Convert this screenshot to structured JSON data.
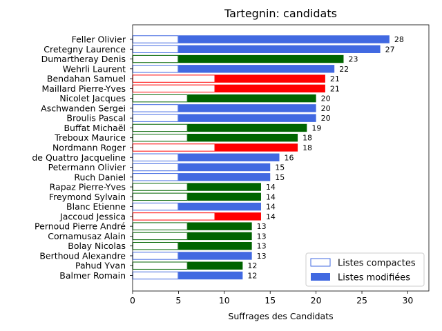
{
  "chart_data": {
    "type": "bar",
    "orientation": "horizontal",
    "stacked": true,
    "title": "Tartegnin: candidats",
    "xlabel": "Suffrages des Candidats",
    "ylabel": "",
    "xlim": [
      0,
      32.3
    ],
    "xticks": [
      0,
      5,
      10,
      15,
      20,
      25,
      30
    ],
    "grid": false,
    "legend_position": "bottom-right",
    "legend": [
      {
        "label": "Listes compactes",
        "style": "outline",
        "color": "#4169e1"
      },
      {
        "label": "Listes modifiées",
        "style": "filled",
        "color": "#4169e1"
      }
    ],
    "candidates": [
      {
        "name": "Feller Olivier",
        "compact": 5,
        "total": 28,
        "color": "#4169e1"
      },
      {
        "name": "Cretegny Laurence",
        "compact": 5,
        "total": 27,
        "color": "#4169e1"
      },
      {
        "name": "Dumartheray Denis",
        "compact": 5,
        "total": 23,
        "color": "#006400"
      },
      {
        "name": "Wehrli Laurent",
        "compact": 5,
        "total": 22,
        "color": "#4169e1"
      },
      {
        "name": "Bendahan Samuel",
        "compact": 9,
        "total": 21,
        "color": "#ff0000"
      },
      {
        "name": "Maillard Pierre-Yves",
        "compact": 9,
        "total": 21,
        "color": "#ff0000"
      },
      {
        "name": "Nicolet Jacques",
        "compact": 6,
        "total": 20,
        "color": "#006400"
      },
      {
        "name": "Aschwanden Sergei",
        "compact": 5,
        "total": 20,
        "color": "#4169e1"
      },
      {
        "name": "Broulis Pascal",
        "compact": 5,
        "total": 20,
        "color": "#4169e1"
      },
      {
        "name": "Buffat Michaël",
        "compact": 6,
        "total": 19,
        "color": "#006400"
      },
      {
        "name": "Treboux Maurice",
        "compact": 6,
        "total": 18,
        "color": "#006400"
      },
      {
        "name": "Nordmann Roger",
        "compact": 9,
        "total": 18,
        "color": "#ff0000"
      },
      {
        "name": "de Quattro Jacqueline",
        "compact": 5,
        "total": 16,
        "color": "#4169e1"
      },
      {
        "name": "Petermann Olivier",
        "compact": 5,
        "total": 15,
        "color": "#4169e1"
      },
      {
        "name": "Ruch Daniel",
        "compact": 5,
        "total": 15,
        "color": "#4169e1"
      },
      {
        "name": "Rapaz Pierre-Yves",
        "compact": 6,
        "total": 14,
        "color": "#006400"
      },
      {
        "name": "Freymond Sylvain",
        "compact": 6,
        "total": 14,
        "color": "#006400"
      },
      {
        "name": "Blanc Etienne",
        "compact": 5,
        "total": 14,
        "color": "#4169e1"
      },
      {
        "name": "Jaccoud Jessica",
        "compact": 9,
        "total": 14,
        "color": "#ff0000"
      },
      {
        "name": "Pernoud Pierre André",
        "compact": 6,
        "total": 13,
        "color": "#006400"
      },
      {
        "name": "Cornamusaz Alain",
        "compact": 6,
        "total": 13,
        "color": "#006400"
      },
      {
        "name": "Bolay Nicolas",
        "compact": 5,
        "total": 13,
        "color": "#006400"
      },
      {
        "name": "Berthoud Alexandre",
        "compact": 5,
        "total": 13,
        "color": "#4169e1"
      },
      {
        "name": "Pahud Yvan",
        "compact": 6,
        "total": 12,
        "color": "#006400"
      },
      {
        "name": "Balmer Romain",
        "compact": 5,
        "total": 12,
        "color": "#4169e1"
      }
    ]
  }
}
